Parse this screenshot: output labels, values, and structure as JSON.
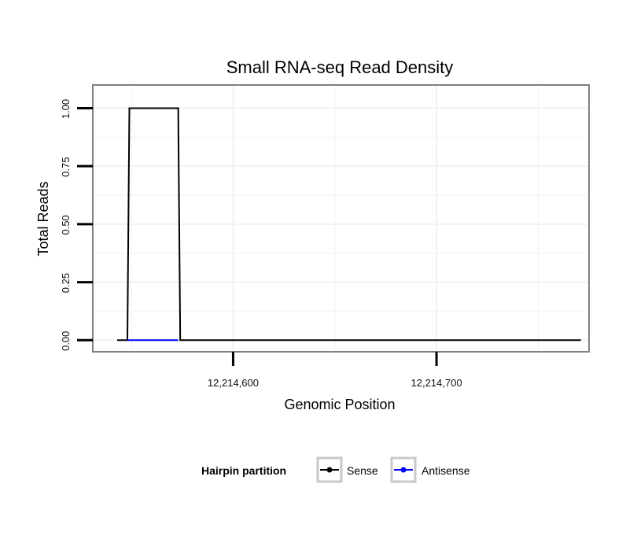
{
  "chart_data": {
    "type": "line",
    "title": "Small RNA-seq Read Density",
    "xlabel": "Genomic Position",
    "ylabel": "Total Reads",
    "xlim": [
      12214531,
      12214775
    ],
    "ylim": [
      -0.05,
      1.1
    ],
    "x_ticks": [
      {
        "value": 12214600,
        "label": "12,214,600"
      },
      {
        "value": 12214700,
        "label": "12,214,700"
      }
    ],
    "y_ticks": [
      {
        "value": 0.0,
        "label": "0.00"
      },
      {
        "value": 0.25,
        "label": "0.25"
      },
      {
        "value": 0.5,
        "label": "0.50"
      },
      {
        "value": 0.75,
        "label": "0.75"
      },
      {
        "value": 1.0,
        "label": "1.00"
      }
    ],
    "grid": true,
    "legend": {
      "title": "Hairpin partition",
      "position": "bottom"
    },
    "series": [
      {
        "name": "Sense",
        "color": "#000000",
        "x": [
          12214543,
          12214548,
          12214549,
          12214573,
          12214574,
          12214771
        ],
        "y": [
          0,
          0,
          1,
          1,
          0,
          0
        ]
      },
      {
        "name": "Antisense",
        "color": "#0000ff",
        "x": [
          12214548,
          12214573
        ],
        "y": [
          0,
          0
        ]
      }
    ]
  }
}
